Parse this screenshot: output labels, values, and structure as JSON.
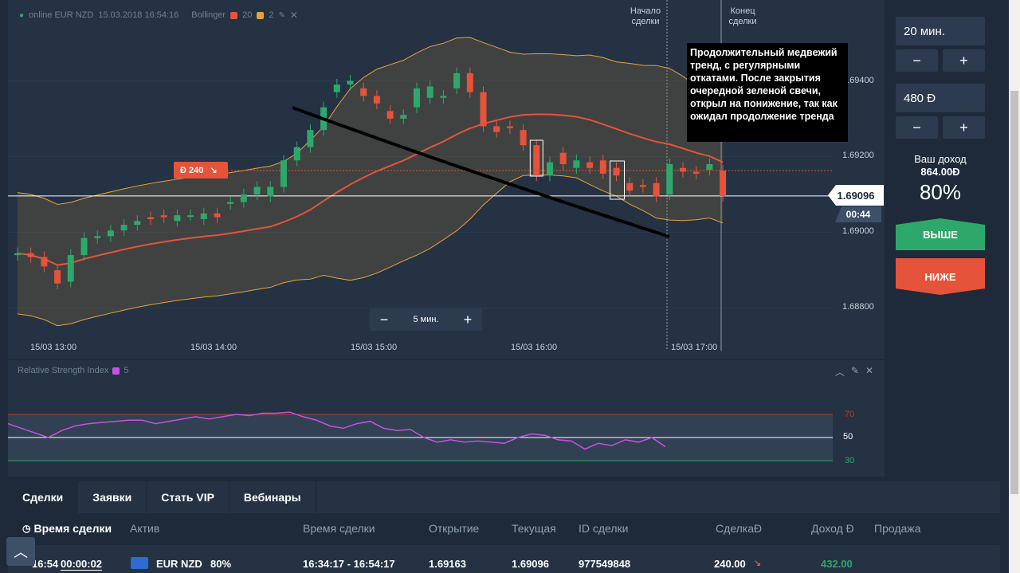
{
  "chart": {
    "asset_status": "online EUR NZD",
    "datetime": "15.03.2018 16:54:16",
    "indicator_name": "Bollinger",
    "indicator_param1": "20",
    "indicator_param2": "2",
    "colors": {
      "up": "#2ea86a",
      "down": "#e5533a",
      "middle_band": "#e5533a",
      "band": "#e8a23a",
      "trend_line": "#000000"
    },
    "price_labels": [
      "1.69400",
      "1.69200",
      "1.69000",
      "1.68800"
    ],
    "time_labels": [
      "15/03 13:00",
      "15/03 14:00",
      "15/03 15:00",
      "15/03 16:00",
      "15/03 17:00"
    ],
    "deal_start": "Начало\nсделки",
    "deal_end": "Конец\nсделки",
    "current_price": "1.69096",
    "timer": "00:44",
    "trade_marker_amount": "Ð 240",
    "trade_marker_icon": "arrow-down-right-icon",
    "annotation": "Продолжительный медвежий тренд, с регулярными откатами. После закрытия очередной зеленой свечи, открыл на понижение, так как ожидал продолжение тренда",
    "timeframe": "5 мин.",
    "zoom_minus": "−",
    "zoom_plus": "+"
  },
  "rsi": {
    "title": "Relative Strength Index",
    "period": "5",
    "levels": [
      "70",
      "50",
      "30"
    ],
    "color": "#c452e0"
  },
  "order": {
    "duration": "20 мин.",
    "amount": "480 Ð",
    "minus": "−",
    "plus": "+",
    "income_label": "Ваш доход",
    "income_value": "864.00Ð",
    "percent": "80%",
    "btn_up": "ВЫШЕ",
    "btn_down": "НИЖЕ"
  },
  "bottom": {
    "tabs": [
      "Сделки",
      "Заявки",
      "Стать VIP",
      "Вебинары"
    ],
    "headers": [
      "Время сделки",
      "Актив",
      "Время сделки",
      "Открытие",
      "Текущая",
      "ID сделки",
      "СделкаÐ",
      "Доход Ð",
      "Продажа"
    ],
    "row": {
      "time_left": "16:54",
      "countdown": "00:00:02",
      "asset": "EUR NZD",
      "asset_percent": "80%",
      "period": "16:34:17 - 16:54:17",
      "open": "1.69163",
      "current": "1.69096",
      "id": "977549848",
      "amount": "240.00",
      "income": "432.00"
    }
  },
  "chart_data": {
    "type": "candlestick",
    "title": "",
    "price_range": [
      1.6873,
      1.6955
    ],
    "candles": [
      {
        "o": 1.6894,
        "c": 1.68945
      },
      {
        "o": 1.68945,
        "c": 1.68935
      },
      {
        "o": 1.68935,
        "c": 1.6891
      },
      {
        "o": 1.689,
        "c": 1.68865
      },
      {
        "o": 1.6887,
        "c": 1.6894
      },
      {
        "o": 1.6894,
        "c": 1.68985
      },
      {
        "o": 1.68985,
        "c": 1.6899
      },
      {
        "o": 1.6899,
        "c": 1.69005
      },
      {
        "o": 1.69005,
        "c": 1.6902
      },
      {
        "o": 1.6902,
        "c": 1.6903
      },
      {
        "o": 1.6904,
        "c": 1.69035
      },
      {
        "o": 1.69045,
        "c": 1.6904
      },
      {
        "o": 1.6903,
        "c": 1.69045
      },
      {
        "o": 1.69045,
        "c": 1.69045
      },
      {
        "o": 1.69035,
        "c": 1.6905
      },
      {
        "o": 1.6905,
        "c": 1.6904
      },
      {
        "o": 1.69075,
        "c": 1.6908
      },
      {
        "o": 1.6908,
        "c": 1.691
      },
      {
        "o": 1.691,
        "c": 1.6912
      },
      {
        "o": 1.69095,
        "c": 1.6912
      },
      {
        "o": 1.6912,
        "c": 1.6919
      },
      {
        "o": 1.6919,
        "c": 1.69225
      },
      {
        "o": 1.69225,
        "c": 1.6927
      },
      {
        "o": 1.6927,
        "c": 1.6933
      },
      {
        "o": 1.6937,
        "c": 1.6939
      },
      {
        "o": 1.6939,
        "c": 1.694
      },
      {
        "o": 1.6938,
        "c": 1.6936
      },
      {
        "o": 1.6936,
        "c": 1.6934
      },
      {
        "o": 1.6932,
        "c": 1.693
      },
      {
        "o": 1.693,
        "c": 1.6931
      },
      {
        "o": 1.6933,
        "c": 1.6938
      },
      {
        "o": 1.69355,
        "c": 1.69385
      },
      {
        "o": 1.69355,
        "c": 1.6936
      },
      {
        "o": 1.6938,
        "c": 1.6942
      },
      {
        "o": 1.6942,
        "c": 1.6937
      },
      {
        "o": 1.6937,
        "c": 1.6928
      },
      {
        "o": 1.6928,
        "c": 1.69265
      },
      {
        "o": 1.6928,
        "c": 1.69275
      },
      {
        "o": 1.6927,
        "c": 1.6923
      },
      {
        "o": 1.6923,
        "c": 1.6915
      },
      {
        "o": 1.6915,
        "c": 1.69185
      },
      {
        "o": 1.6921,
        "c": 1.6918
      },
      {
        "o": 1.6917,
        "c": 1.6919
      },
      {
        "o": 1.69185,
        "c": 1.6917
      },
      {
        "o": 1.6919,
        "c": 1.69155
      },
      {
        "o": 1.6917,
        "c": 1.6915
      },
      {
        "o": 1.6913,
        "c": 1.6911
      },
      {
        "o": 1.69125,
        "c": 1.6912
      },
      {
        "o": 1.6913,
        "c": 1.69095
      },
      {
        "o": 1.691,
        "c": 1.6918
      },
      {
        "o": 1.6917,
        "c": 1.6916
      },
      {
        "o": 1.6916,
        "c": 1.69155
      },
      {
        "o": 1.69165,
        "c": 1.6918
      },
      {
        "o": 1.69163,
        "c": 1.69096
      }
    ],
    "rsi": [
      62,
      58,
      54,
      50,
      56,
      60,
      62,
      63,
      64,
      65,
      65,
      62,
      64,
      66,
      68,
      66,
      68,
      70,
      69,
      71,
      71,
      72,
      68,
      65,
      60,
      58,
      62,
      64,
      58,
      56,
      57,
      50,
      46,
      48,
      46,
      47,
      46,
      45,
      50,
      53,
      52,
      48,
      47,
      40,
      45,
      43,
      48,
      46,
      50,
      42
    ]
  }
}
